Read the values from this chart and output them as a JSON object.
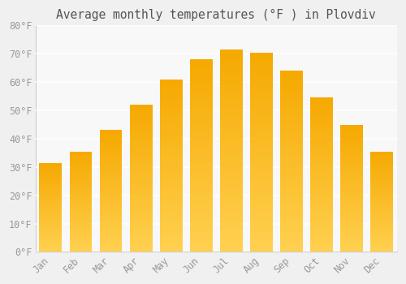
{
  "title": "Average monthly temperatures (°F ) in Plovdiv",
  "months": [
    "Jan",
    "Feb",
    "Mar",
    "Apr",
    "May",
    "Jun",
    "Jul",
    "Aug",
    "Sep",
    "Oct",
    "Nov",
    "Dec"
  ],
  "values": [
    31.5,
    35.5,
    43.0,
    52.0,
    61.0,
    68.0,
    71.5,
    70.5,
    64.0,
    54.5,
    45.0,
    35.5
  ],
  "ylim": [
    0,
    80
  ],
  "yticks": [
    0,
    10,
    20,
    30,
    40,
    50,
    60,
    70,
    80
  ],
  "bar_color_top": "#F5A800",
  "bar_color_bottom": "#FFD050",
  "background_color": "#f0f0f0",
  "plot_bg_color": "#f8f8f8",
  "grid_color": "#ffffff",
  "title_fontsize": 10.5,
  "tick_fontsize": 8.5,
  "tick_color": "#999999",
  "font_family": "monospace",
  "bar_width": 0.75
}
